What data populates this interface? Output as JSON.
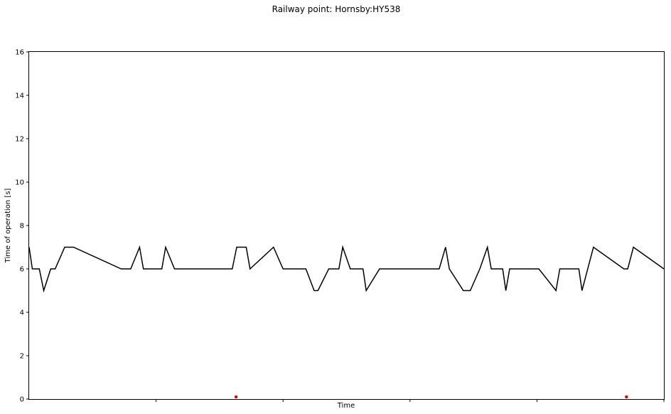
{
  "chart_data": {
    "type": "line",
    "title": "Railway point: Hornsby:HY538",
    "xlabel": "Time",
    "ylabel": "Time of operation [s]",
    "ylim": [
      0,
      16
    ],
    "xlim": [
      0,
      100
    ],
    "y_ticks": [
      "0",
      "2",
      "4",
      "6",
      "8",
      "10",
      "12",
      "14",
      "16"
    ],
    "x_ticks": [
      20,
      40,
      60,
      80,
      100
    ],
    "x_tick_labels_shown": false,
    "grid": false,
    "legend": "none",
    "series": [
      {
        "color": "#000000",
        "x": [
          0,
          0.5,
          1.6,
          2.3,
          3.4,
          4.1,
          5.6,
          7.0,
          14.5,
          16.0,
          17.4,
          18.0,
          20.9,
          21.5,
          22.9,
          32.0,
          32.7,
          34.2,
          34.8,
          38.5,
          40.0,
          43.6,
          44.9,
          45.5,
          47.2,
          48.8,
          49.4,
          50.6,
          52.6,
          53.1,
          55.2,
          64.6,
          65.6,
          66.2,
          68.4,
          69.5,
          71.0,
          72.2,
          72.8,
          74.6,
          75.1,
          75.7,
          80.3,
          83.0,
          83.6,
          86.6,
          87.1,
          88.9,
          93.7,
          94.3,
          95.2,
          100.0
        ],
        "y": [
          7,
          6,
          6,
          5,
          6,
          6,
          7,
          7,
          6,
          6,
          7,
          6,
          6,
          7,
          6,
          6,
          7,
          7,
          6,
          7,
          6,
          6,
          5,
          5,
          6,
          6,
          7,
          6,
          6,
          5,
          6,
          6,
          7,
          6,
          5,
          5,
          6,
          7,
          6,
          6,
          5,
          6,
          6,
          5,
          6,
          6,
          5,
          7,
          6,
          6,
          7,
          6
        ]
      }
    ],
    "markers": [
      {
        "color": "#e00000",
        "x": 32.6,
        "y": 0.1
      },
      {
        "color": "#e00000",
        "x": 94.1,
        "y": 0.1
      }
    ]
  }
}
